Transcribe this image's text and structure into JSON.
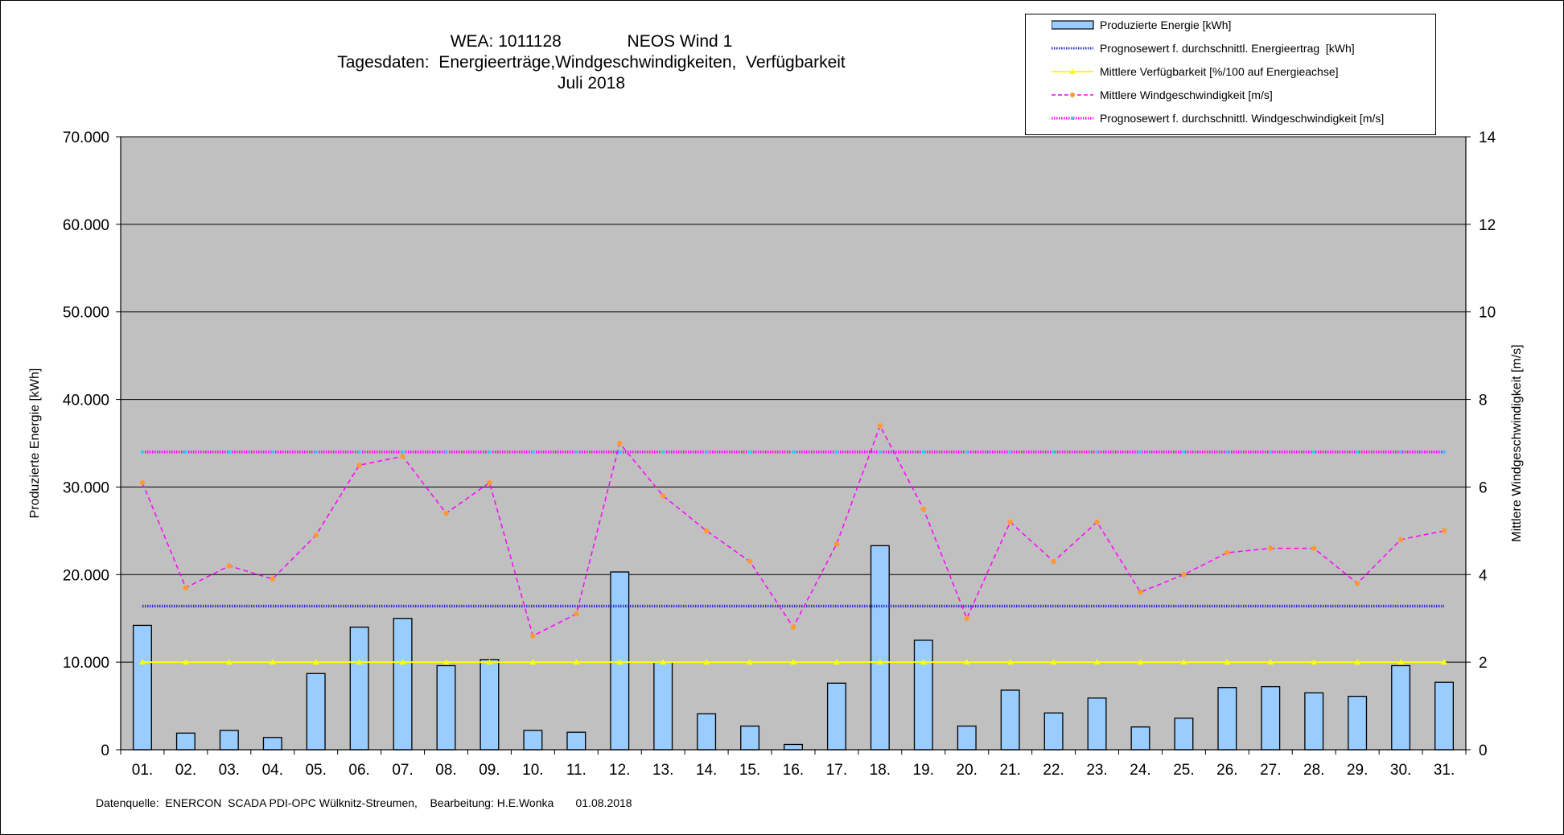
{
  "title": {
    "line1_left": "WEA: 1011128",
    "line1_right": "NEOS Wind 1",
    "line2": "Tagesdaten:  Energieerträge,Windgeschwindigkeiten,  Verfügbarkeit",
    "line3": "Juli 2018"
  },
  "legend": [
    {
      "label": "Produzierte Energie [kWh]",
      "kind": "bar"
    },
    {
      "label": "Prognosewert f. durchschnittl. Energieertrag  [kWh]",
      "kind": "dotted-blue"
    },
    {
      "label": "Mittlere Verfügbarkeit [%/100 auf Energieachse]",
      "kind": "yellow-line"
    },
    {
      "label": "Mittlere Windgeschwindigkeit [m/s]",
      "kind": "magenta-dashed"
    },
    {
      "label": "Prognosewert f. durchschnittl. Windgeschwindigkeit [m/s]",
      "kind": "dotted-magenta"
    }
  ],
  "footer": "Datenquelle:  ENERCON  SCADA PDI-OPC Wülknitz-Streumen,    Bearbeitung: H.E.Wonka       01.08.2018",
  "colors": {
    "plot_bg": "#c0c0c0",
    "bar_fill": "#99ccff",
    "forecast_energy": "#3333cc",
    "availability": "#ffff00",
    "wind": "#ff00ff",
    "wind_marker": "#ff9933",
    "forecast_wind": "#ff00ff",
    "forecast_wind_marker": "#33ccff"
  },
  "chart_data": {
    "type": "bar",
    "categories": [
      "01.",
      "02.",
      "03.",
      "04.",
      "05.",
      "06.",
      "07.",
      "08.",
      "09.",
      "10.",
      "11.",
      "12.",
      "13.",
      "14.",
      "15.",
      "16.",
      "17.",
      "18.",
      "19.",
      "20.",
      "21.",
      "22.",
      "23.",
      "24.",
      "25.",
      "26.",
      "27.",
      "28.",
      "29.",
      "30.",
      "31."
    ],
    "y_ticks": [
      "0",
      "10.000",
      "20.000",
      "30.000",
      "40.000",
      "50.000",
      "60.000",
      "70.000"
    ],
    "y2_ticks": [
      "0",
      "2",
      "4",
      "6",
      "8",
      "10",
      "12",
      "14"
    ],
    "ylabel": "Produzierte Energie [kWh]",
    "y2label": "Mittlere Windgeschwindigkeit [m/s]",
    "ylim": [
      0,
      70000
    ],
    "y2lim": [
      0,
      14
    ],
    "grid": true,
    "legend_position": "top-right",
    "series": [
      {
        "name": "Produzierte Energie [kWh]",
        "type": "bar",
        "axis": "left",
        "values": [
          14200,
          1900,
          2200,
          1400,
          8700,
          14000,
          15000,
          9600,
          10300,
          2200,
          2000,
          20300,
          10000,
          4100,
          2700,
          600,
          7600,
          23300,
          12500,
          2700,
          6800,
          4200,
          5900,
          2600,
          3600,
          7100,
          7200,
          6500,
          6100,
          9600,
          7700
        ]
      },
      {
        "name": "Prognosewert f. durchschnittl. Energieertrag  [kWh]",
        "type": "line",
        "axis": "left",
        "values": [
          16400,
          16400,
          16400,
          16400,
          16400,
          16400,
          16400,
          16400,
          16400,
          16400,
          16400,
          16400,
          16400,
          16400,
          16400,
          16400,
          16400,
          16400,
          16400,
          16400,
          16400,
          16400,
          16400,
          16400,
          16400,
          16400,
          16400,
          16400,
          16400,
          16400,
          16400
        ]
      },
      {
        "name": "Mittlere Verfügbarkeit [%/100 auf Energieachse]",
        "type": "line",
        "axis": "left",
        "values": [
          10000,
          10000,
          10000,
          10000,
          10000,
          10000,
          10000,
          10000,
          10000,
          10000,
          10000,
          10000,
          10000,
          10000,
          10000,
          10000,
          10000,
          10000,
          10000,
          10000,
          10000,
          10000,
          10000,
          10000,
          10000,
          10000,
          10000,
          10000,
          10000,
          10000,
          10000
        ]
      },
      {
        "name": "Mittlere Windgeschwindigkeit [m/s]",
        "type": "line",
        "axis": "right",
        "values": [
          6.1,
          3.7,
          4.2,
          3.9,
          4.9,
          6.5,
          6.7,
          5.4,
          6.1,
          2.6,
          3.1,
          7.0,
          5.8,
          5.0,
          4.3,
          2.8,
          4.7,
          7.4,
          5.5,
          3.0,
          5.2,
          4.3,
          5.2,
          3.6,
          4.0,
          4.5,
          4.6,
          4.6,
          3.8,
          4.8,
          5.0
        ]
      },
      {
        "name": "Prognosewert f. durchschnittl. Windgeschwindigkeit [m/s]",
        "type": "line",
        "axis": "right",
        "values": [
          6.8,
          6.8,
          6.8,
          6.8,
          6.8,
          6.8,
          6.8,
          6.8,
          6.8,
          6.8,
          6.8,
          6.8,
          6.8,
          6.8,
          6.8,
          6.8,
          6.8,
          6.8,
          6.8,
          6.8,
          6.8,
          6.8,
          6.8,
          6.8,
          6.8,
          6.8,
          6.8,
          6.8,
          6.8,
          6.8,
          6.8
        ]
      }
    ]
  }
}
